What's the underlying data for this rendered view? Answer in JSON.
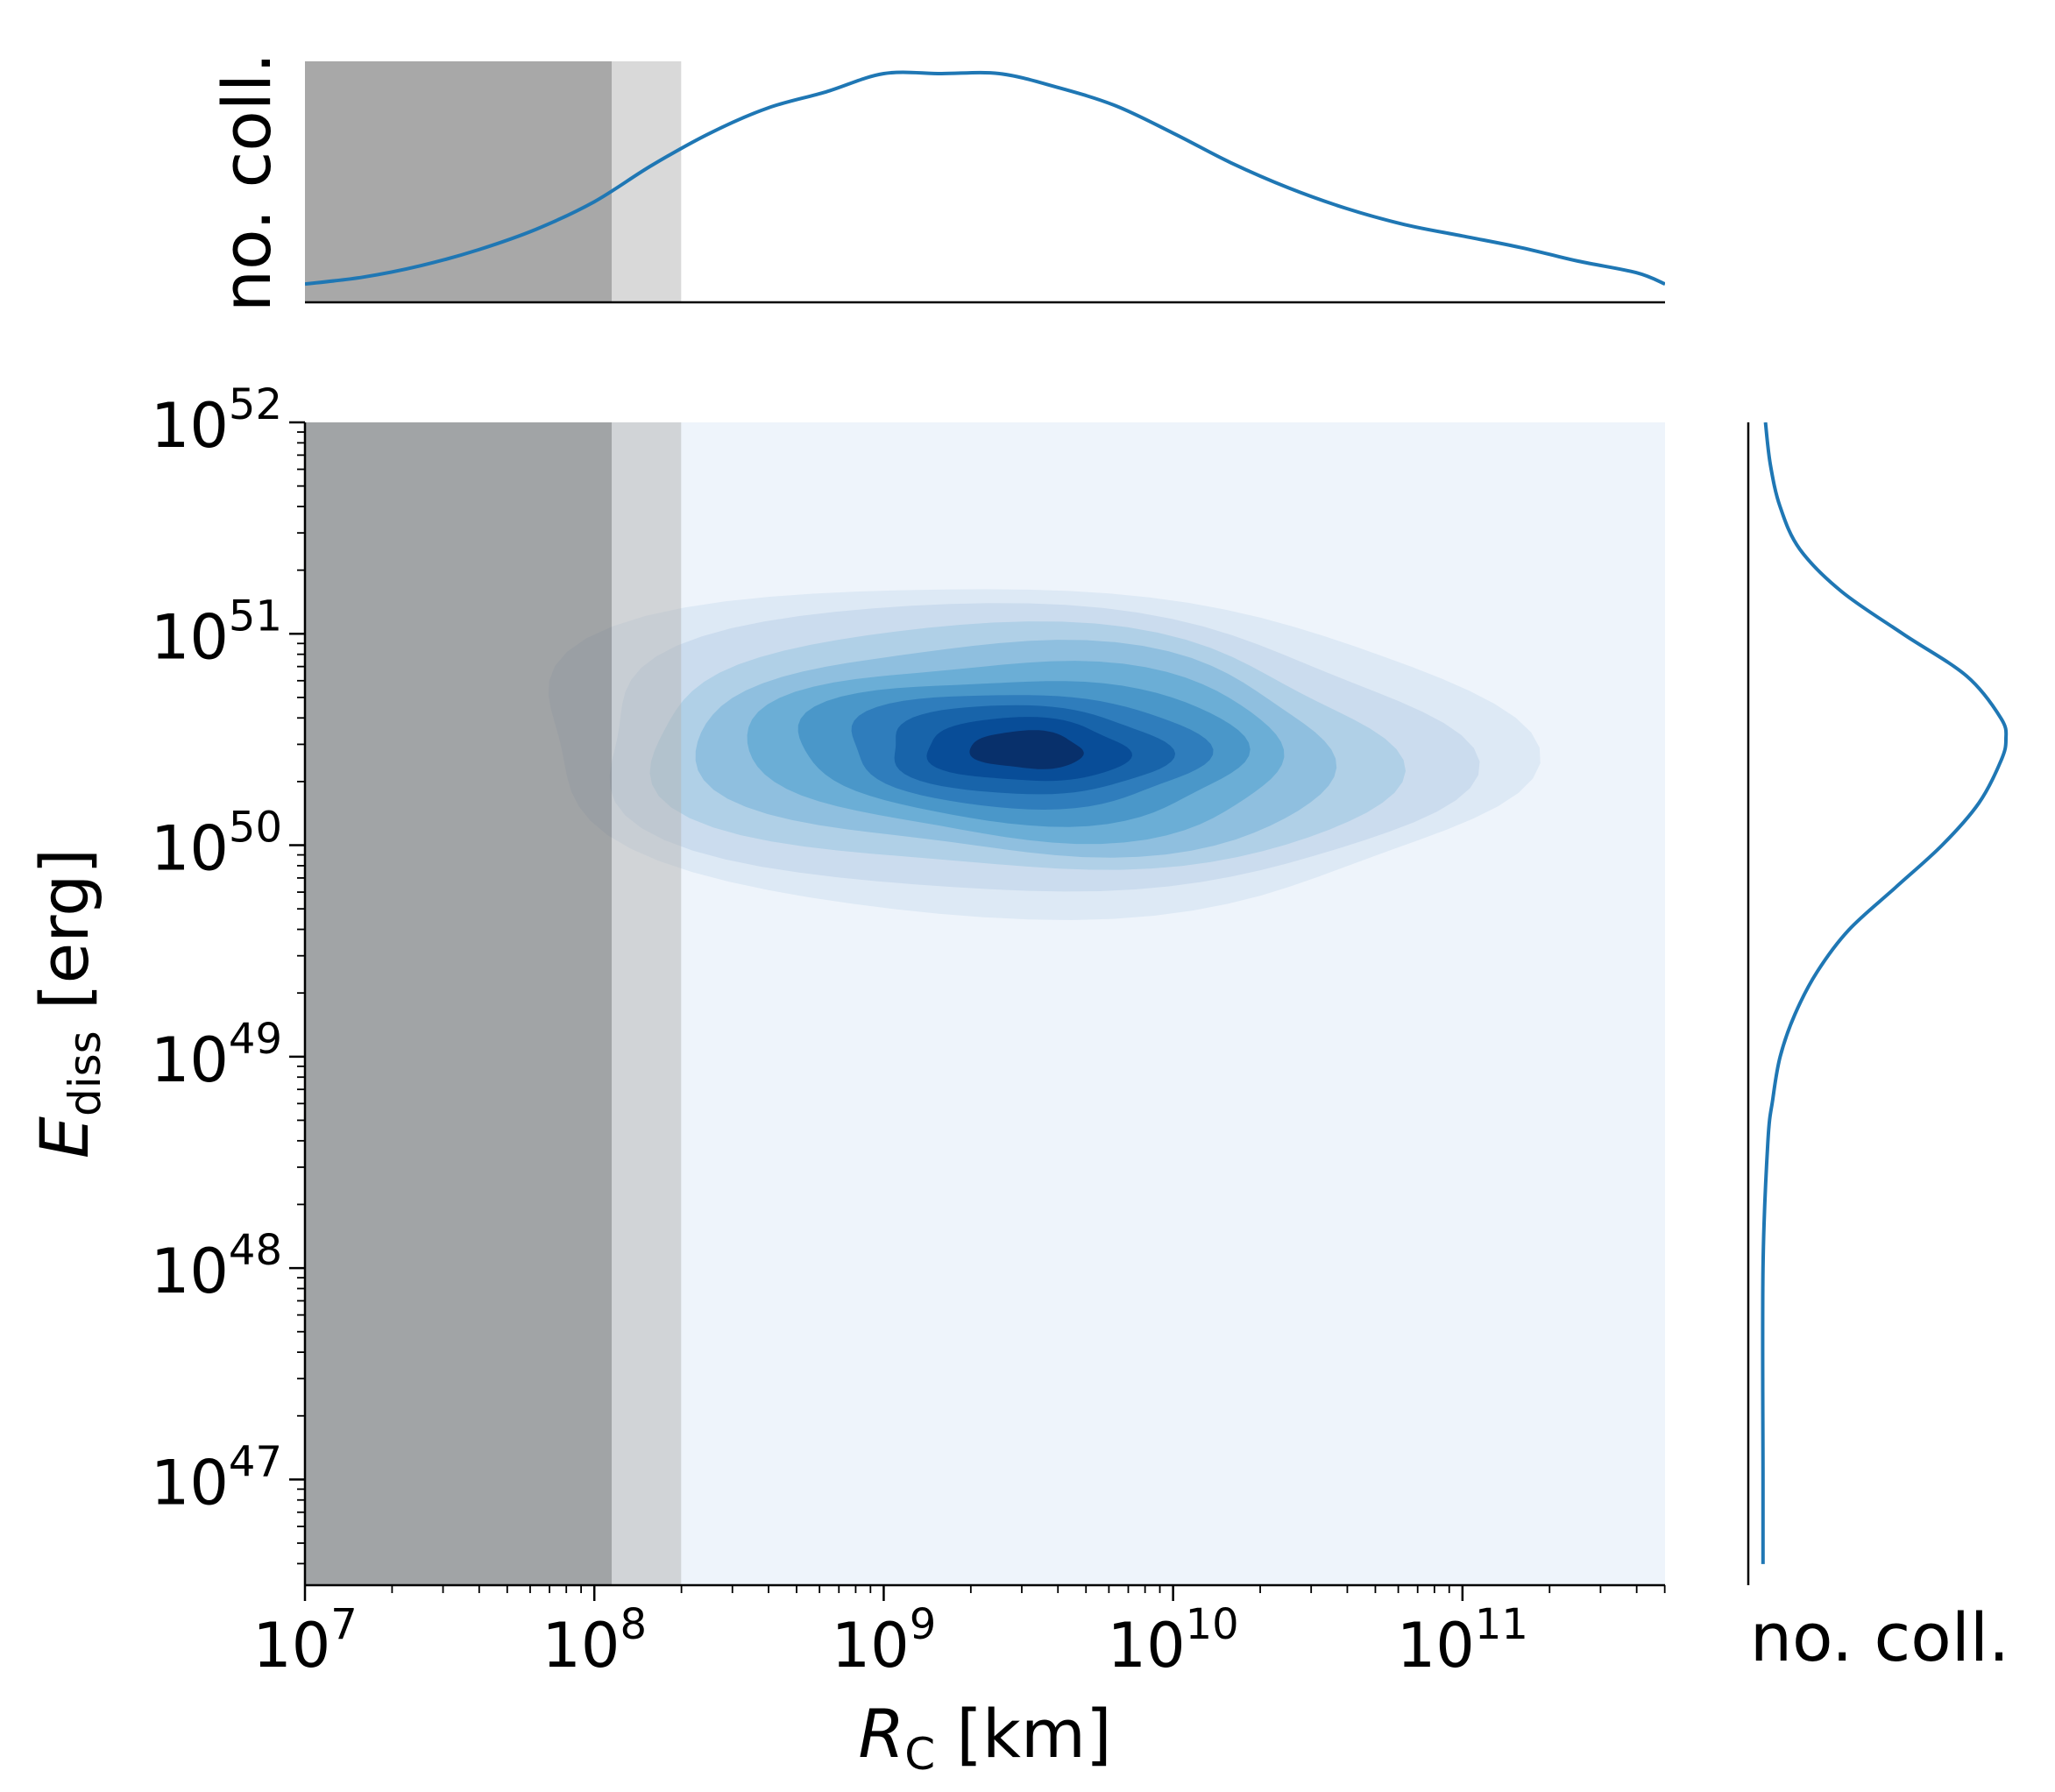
{
  "chart_data": {
    "type": "joint-kde",
    "main": {
      "type": "contourf",
      "xlabel_main": "R",
      "xlabel_sub": "C",
      "xlabel_unit": " [km]",
      "ylabel_main": "E",
      "ylabel_sub": "diss",
      "ylabel_unit": " [erg]",
      "xscale": "log",
      "yscale": "log",
      "xlim_exp": [
        7,
        11.7
      ],
      "ylim_exp": [
        46.5,
        52
      ],
      "x_ticks": [
        {
          "exp": 7,
          "base": "10",
          "sup": "7"
        },
        {
          "exp": 8,
          "base": "10",
          "sup": "8"
        },
        {
          "exp": 9,
          "base": "10",
          "sup": "9"
        },
        {
          "exp": 10,
          "base": "10",
          "sup": "10"
        },
        {
          "exp": 11,
          "base": "10",
          "sup": "11"
        }
      ],
      "y_ticks": [
        {
          "exp": 47,
          "base": "10",
          "sup": "47"
        },
        {
          "exp": 48,
          "base": "10",
          "sup": "48"
        },
        {
          "exp": 49,
          "base": "10",
          "sup": "49"
        },
        {
          "exp": 50,
          "base": "10",
          "sup": "50"
        },
        {
          "exp": 51,
          "base": "10",
          "sup": "51"
        },
        {
          "exp": 52,
          "base": "10",
          "sup": "52"
        }
      ],
      "background_color": "#eef4fb",
      "kde_center": {
        "x_exp": 9.5,
        "y_exp": 50.45
      },
      "levels": [
        {
          "level": 1,
          "color": "#dde9f5",
          "sx": 1.65,
          "sy": 0.78
        },
        {
          "level": 2,
          "color": "#cbdcee",
          "sx": 1.45,
          "sy": 0.68
        },
        {
          "level": 3,
          "color": "#b0d0e7",
          "sx": 1.25,
          "sy": 0.58
        },
        {
          "level": 4,
          "color": "#8fbfdf",
          "sx": 1.07,
          "sy": 0.5
        },
        {
          "level": 5,
          "color": "#6baed6",
          "sx": 0.9,
          "sy": 0.42
        },
        {
          "level": 6,
          "color": "#4a97c9",
          "sx": 0.75,
          "sy": 0.34
        },
        {
          "level": 7,
          "color": "#2f7dbc",
          "sx": 0.6,
          "sy": 0.27
        },
        {
          "level": 8,
          "color": "#1864aa",
          "sx": 0.47,
          "sy": 0.21
        },
        {
          "level": 9,
          "color": "#084d98",
          "sx": 0.34,
          "sy": 0.15
        },
        {
          "level": 10,
          "color": "#08306b",
          "sx": 0.19,
          "sy": 0.09
        }
      ]
    },
    "excluded_regions": [
      {
        "x_from_exp": 7,
        "x_to_exp": 8.06,
        "color": "#6e6e6e",
        "opacity": 0.6
      },
      {
        "x_from_exp": 8.06,
        "x_to_exp": 8.3,
        "color": "#b3b3b3",
        "opacity": 0.5
      }
    ],
    "top_marginal": {
      "ylabel": "no. coll.",
      "color": "#1f77b4",
      "x_exp": [
        7.0,
        7.2,
        7.4,
        7.6,
        7.8,
        8.0,
        8.2,
        8.4,
        8.6,
        8.8,
        9.0,
        9.2,
        9.4,
        9.6,
        9.8,
        10.0,
        10.2,
        10.4,
        10.6,
        10.8,
        11.0,
        11.2,
        11.4,
        11.6,
        11.7
      ],
      "density": [
        0.08,
        0.11,
        0.16,
        0.23,
        0.32,
        0.44,
        0.6,
        0.74,
        0.85,
        0.92,
        1.0,
        1.0,
        1.0,
        0.94,
        0.86,
        0.74,
        0.61,
        0.5,
        0.41,
        0.34,
        0.29,
        0.24,
        0.18,
        0.13,
        0.08
      ]
    },
    "right_marginal": {
      "xlabel": "no. coll.",
      "color": "#1f77b4",
      "y_exp": [
        46.6,
        47.0,
        48.0,
        48.6,
        48.8,
        49.0,
        49.2,
        49.4,
        49.6,
        49.8,
        50.0,
        50.2,
        50.4,
        50.5,
        50.6,
        50.8,
        51.0,
        51.2,
        51.4,
        51.6,
        51.8,
        52.0
      ],
      "density": [
        0.01,
        0.01,
        0.01,
        0.03,
        0.05,
        0.08,
        0.14,
        0.23,
        0.36,
        0.55,
        0.74,
        0.89,
        0.98,
        1.0,
        0.98,
        0.84,
        0.58,
        0.33,
        0.16,
        0.08,
        0.04,
        0.02
      ]
    }
  }
}
